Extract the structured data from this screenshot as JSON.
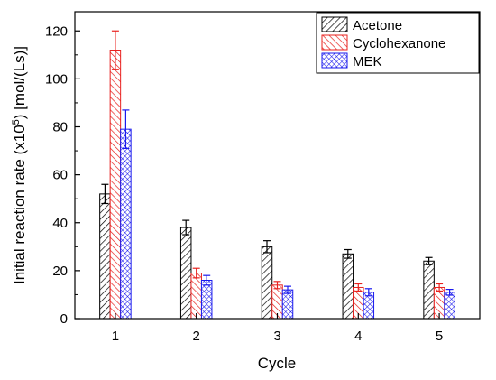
{
  "chart_data": {
    "type": "bar",
    "title": "",
    "xlabel": "Cycle",
    "ylabel": {
      "main": "Initial reaction rate (x10",
      "exp": "5",
      "rest": ") [mol/(Ls)]"
    },
    "categories": [
      "1",
      "2",
      "3",
      "4",
      "5"
    ],
    "ylim": [
      0,
      128
    ],
    "yticks": [
      0,
      20,
      40,
      60,
      80,
      100,
      120
    ],
    "grid": false,
    "legend_position": "top-right",
    "series": [
      {
        "name": "Acetone",
        "color": "#000000",
        "pattern": "diagonal-hatch",
        "values": [
          52,
          38,
          30,
          27,
          24
        ],
        "errors": [
          4,
          3,
          2.5,
          1.8,
          1.5
        ]
      },
      {
        "name": "Cyclohexanone",
        "color": "#e8211e",
        "pattern": "reverse-diagonal-hatch",
        "values": [
          112,
          19,
          14,
          13,
          13
        ],
        "errors": [
          8,
          2,
          1.5,
          1.5,
          1.5
        ]
      },
      {
        "name": "MEK",
        "color": "#1a1aee",
        "pattern": "crosshatch",
        "values": [
          79,
          16,
          12,
          11,
          11
        ],
        "errors": [
          8,
          2,
          1.5,
          1.5,
          1.2
        ]
      }
    ]
  }
}
